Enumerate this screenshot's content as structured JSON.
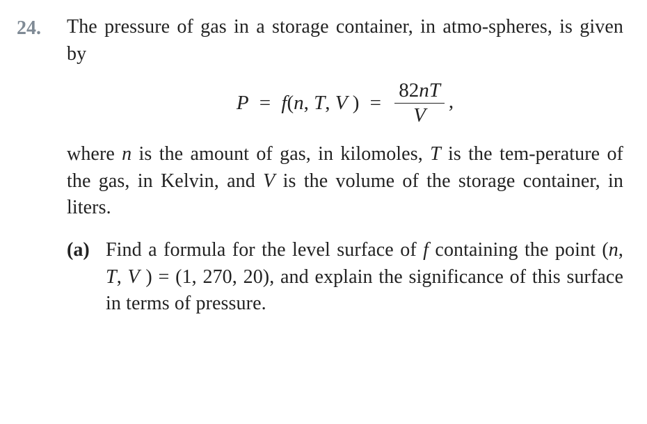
{
  "colors": {
    "problem_number": "#7f8a95",
    "text": "#222222",
    "background": "#ffffff"
  },
  "font": {
    "family": "Times New Roman",
    "body_size_pt": 21,
    "number_weight": 700
  },
  "problem": {
    "number": "24.",
    "intro_html": "The pressure of gas in a storage container, in atmo-spheres, is given by",
    "formula": {
      "lhs": "P",
      "mid_fn": "f",
      "mid_args": "(n, T, V )",
      "frac_num_html": "82<span class=\"ital\">nT</span>",
      "frac_den_html": "<span class=\"ital\">V</span>"
    },
    "desc_html": "where <span class=\"ital\">n</span> is the amount of gas, in kilomoles, <span class=\"ital\">T</span> is the tem-perature of the gas, in Kelvin, and <span class=\"ital\">V</span> is the volume of the storage container, in liters.",
    "subparts": [
      {
        "label": "(a)",
        "body_html": "Find a formula for the level surface of <span class=\"ital\">f</span> containing the point (<span class=\"ital\">n</span>, <span class=\"ital\">T</span>, <span class=\"ital\">V</span> ) = (1, 270, 20), and explain the significance of this surface in terms of pressure."
      }
    ]
  }
}
